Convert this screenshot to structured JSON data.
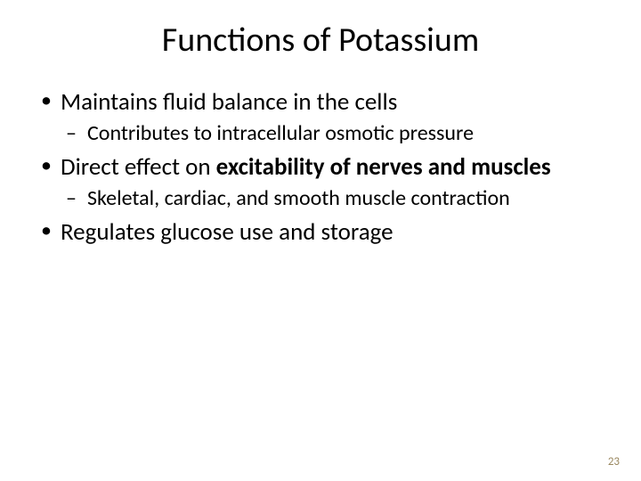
{
  "slide": {
    "title": "Functions of Potassium",
    "title_fontsize": 38,
    "background_color": "#ffffff",
    "text_color": "#000000",
    "body_fontsize_l1": 27,
    "body_fontsize_l2": 24,
    "bullets": [
      {
        "text": "Maintains fluid balance in the cells",
        "sub": [
          {
            "text": "Contributes to intracellular osmotic pressure"
          }
        ]
      },
      {
        "prefix": "Direct effect on ",
        "bold": "excitability of nerves and muscles",
        "sub": [
          {
            "text": "Skeletal, cardiac, and smooth muscle contraction"
          }
        ]
      },
      {
        "text": "Regulates glucose use and storage",
        "sub": []
      }
    ],
    "page_number": "23",
    "page_number_color": "#9a8860",
    "page_number_fontsize": 13
  }
}
